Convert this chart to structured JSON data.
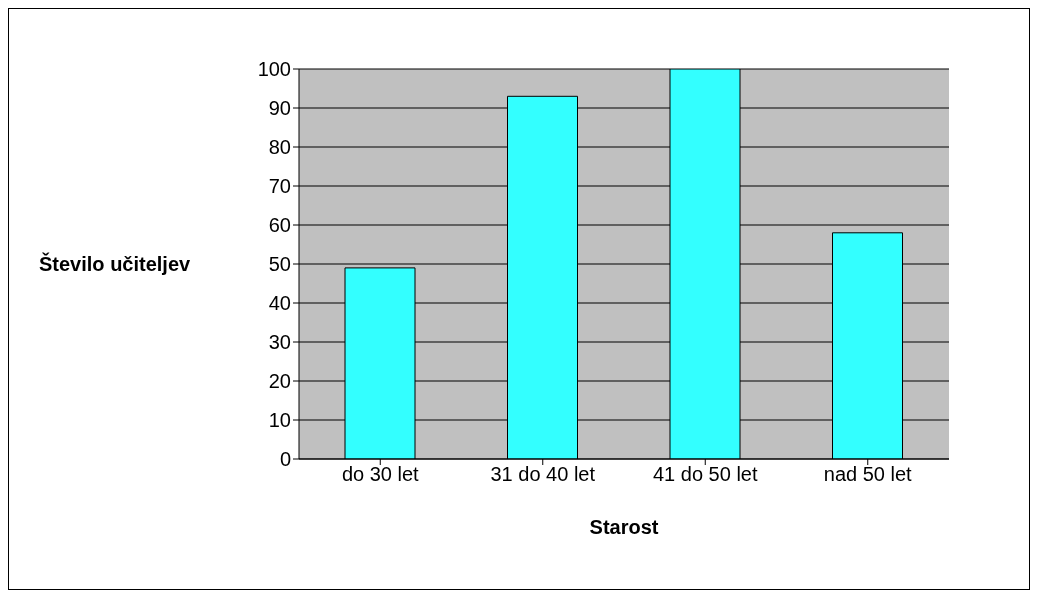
{
  "chart_data": {
    "type": "bar",
    "xlabel": "Starost",
    "ylabel": "Število učiteljev",
    "categories": [
      "do 30 let",
      "31 do 40 let",
      "41 do 50 let",
      "nad 50 let"
    ],
    "values": [
      49,
      93,
      100,
      58
    ],
    "color": "#33ffff",
    "ylim": [
      0,
      100
    ],
    "yticks": [
      0,
      10,
      20,
      30,
      40,
      50,
      60,
      70,
      80,
      90,
      100
    ],
    "grid": "y"
  }
}
